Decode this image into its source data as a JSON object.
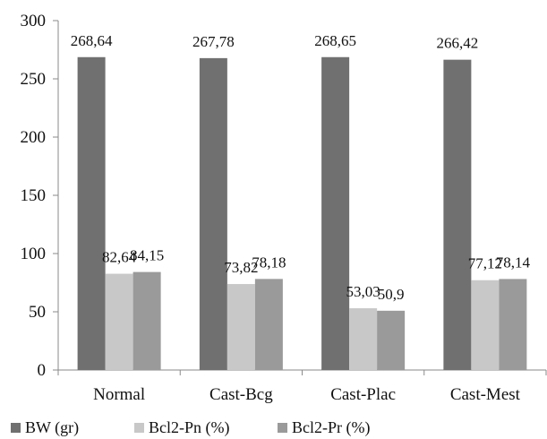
{
  "chart_data": {
    "type": "bar",
    "title": "",
    "xlabel": "",
    "ylabel": "",
    "ylim": [
      0,
      300
    ],
    "yticks": [
      0,
      50,
      100,
      150,
      200,
      250,
      300
    ],
    "grid": false,
    "legend_position": "bottom",
    "categories": [
      "Normal",
      "Cast-Bcg",
      "Cast-Plac",
      "Cast-Mest"
    ],
    "series": [
      {
        "name": "BW (gr)",
        "color": "#707070",
        "values": [
          268.64,
          267.78,
          268.65,
          266.42
        ],
        "labels": [
          "268,64",
          "267,78",
          "268,65",
          "266,42"
        ]
      },
      {
        "name": "Bcl2-Pn (%)",
        "color": "#c8c8c8",
        "values": [
          82.64,
          73.82,
          53.03,
          77.12
        ],
        "labels": [
          "82,64",
          "73,82",
          "53,03",
          "77,12"
        ]
      },
      {
        "name": "Bcl2-Pr (%)",
        "color": "#9a9a9a",
        "values": [
          84.15,
          78.18,
          50.9,
          78.14
        ],
        "labels": [
          "84,15",
          "78,18",
          "50,9",
          "78,14"
        ]
      }
    ]
  }
}
